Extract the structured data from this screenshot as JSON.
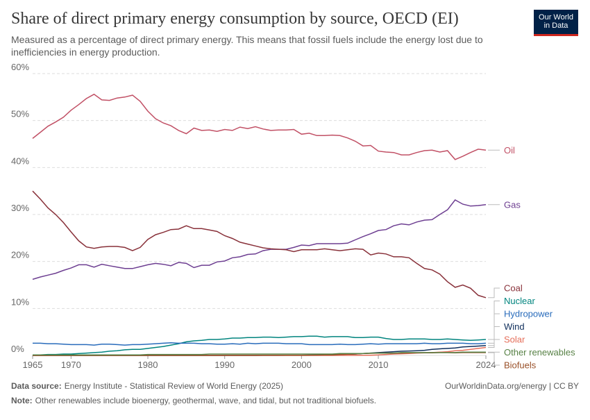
{
  "chart_data": {
    "type": "line",
    "title": "Share of direct primary energy consumption by source, OECD (EI)",
    "subtitle": "Measured as a percentage of direct primary energy. This means that fossil fuels include the energy lost due to inefficiencies in energy production.",
    "logo": "Our World in Data",
    "source_label": "Data source:",
    "source": "Energy Institute - Statistical Review of World Energy (2025)",
    "url": "OurWorldinData.org/energy | CC BY",
    "note_label": "Note:",
    "note": "Other renewables include bioenergy, geothermal, wave, and tidal, but not traditional biofuels.",
    "x": [
      1965,
      1966,
      1967,
      1968,
      1969,
      1970,
      1971,
      1972,
      1973,
      1974,
      1975,
      1976,
      1977,
      1978,
      1979,
      1980,
      1981,
      1982,
      1983,
      1984,
      1985,
      1986,
      1987,
      1988,
      1989,
      1990,
      1991,
      1992,
      1993,
      1994,
      1995,
      1996,
      1997,
      1998,
      1999,
      2000,
      2001,
      2002,
      2003,
      2004,
      2005,
      2006,
      2007,
      2008,
      2009,
      2010,
      2011,
      2012,
      2013,
      2014,
      2015,
      2016,
      2017,
      2018,
      2019,
      2020,
      2021,
      2022,
      2023,
      2024
    ],
    "xlim": [
      1965,
      2024
    ],
    "xticks": [
      1965,
      1970,
      1980,
      1990,
      2000,
      2010,
      2024
    ],
    "ylim": [
      0,
      60
    ],
    "yticks": [
      {
        "value": 0,
        "label": "0%"
      },
      {
        "value": 10,
        "label": "10%"
      },
      {
        "value": 20,
        "label": "20%"
      },
      {
        "value": 30,
        "label": "30%"
      },
      {
        "value": 40,
        "label": "40%"
      },
      {
        "value": 50,
        "label": "50%"
      },
      {
        "value": 60,
        "label": "60%"
      }
    ],
    "grid": true,
    "series": [
      {
        "name": "Oil",
        "color": "#c15065",
        "values": [
          46.2,
          47.5,
          48.8,
          49.7,
          50.7,
          52.2,
          53.4,
          54.7,
          55.6,
          54.4,
          54.3,
          54.8,
          55.0,
          55.4,
          54.1,
          52.0,
          50.4,
          49.5,
          48.9,
          47.9,
          47.2,
          48.4,
          47.9,
          48.0,
          47.7,
          48.1,
          47.9,
          48.6,
          48.3,
          48.7,
          48.2,
          47.9,
          48.0,
          48.0,
          48.1,
          47.1,
          47.3,
          46.8,
          46.8,
          46.9,
          46.8,
          46.3,
          45.6,
          44.6,
          44.7,
          43.5,
          43.3,
          43.2,
          42.7,
          42.7,
          43.2,
          43.6,
          43.7,
          43.3,
          43.6,
          41.7,
          42.4,
          43.2,
          43.9,
          43.7
        ]
      },
      {
        "name": "Gas",
        "color": "#6d3e91",
        "values": [
          16.2,
          16.7,
          17.1,
          17.5,
          18.1,
          18.6,
          19.3,
          19.3,
          18.8,
          19.4,
          19.1,
          18.8,
          18.5,
          18.5,
          18.9,
          19.3,
          19.6,
          19.4,
          19.1,
          19.8,
          19.6,
          18.7,
          19.2,
          19.2,
          19.9,
          20.1,
          20.8,
          21.0,
          21.5,
          21.6,
          22.3,
          22.6,
          22.6,
          22.6,
          23.0,
          23.5,
          23.4,
          23.8,
          23.8,
          23.8,
          23.8,
          23.9,
          24.6,
          25.3,
          25.9,
          26.6,
          26.8,
          27.6,
          28.0,
          27.8,
          28.4,
          28.8,
          28.9,
          30.0,
          31.0,
          33.1,
          32.2,
          31.8,
          31.9,
          32.1
        ]
      },
      {
        "name": "Coal",
        "color": "#883039",
        "values": [
          35.0,
          33.3,
          31.4,
          30.0,
          28.3,
          26.3,
          24.4,
          23.1,
          22.8,
          23.1,
          23.2,
          23.2,
          23.0,
          22.3,
          23.0,
          24.7,
          25.7,
          26.2,
          26.8,
          26.9,
          27.6,
          27.0,
          27.0,
          26.7,
          26.4,
          25.5,
          24.9,
          24.1,
          23.7,
          23.3,
          22.9,
          22.7,
          22.6,
          22.5,
          22.1,
          22.5,
          22.5,
          22.5,
          22.7,
          22.5,
          22.3,
          22.5,
          22.7,
          22.6,
          21.4,
          21.8,
          21.6,
          21.0,
          21.0,
          20.8,
          19.6,
          18.5,
          18.2,
          17.3,
          15.7,
          14.5,
          15.0,
          14.3,
          12.8,
          12.3
        ]
      },
      {
        "name": "Nuclear",
        "color": "#00847e",
        "values": [
          0.1,
          0.1,
          0.2,
          0.2,
          0.3,
          0.3,
          0.4,
          0.5,
          0.6,
          0.7,
          0.9,
          1.0,
          1.2,
          1.3,
          1.3,
          1.5,
          1.7,
          1.9,
          2.2,
          2.5,
          2.9,
          3.1,
          3.2,
          3.4,
          3.4,
          3.5,
          3.7,
          3.7,
          3.8,
          3.8,
          3.9,
          3.9,
          3.8,
          3.9,
          4.0,
          4.0,
          4.1,
          4.1,
          3.9,
          4.0,
          4.0,
          4.0,
          3.8,
          3.8,
          3.9,
          3.9,
          3.6,
          3.4,
          3.4,
          3.5,
          3.5,
          3.5,
          3.4,
          3.4,
          3.5,
          3.4,
          3.3,
          3.2,
          3.3,
          3.4
        ]
      },
      {
        "name": "Hydropower",
        "color": "#286bbb",
        "values": [
          2.6,
          2.6,
          2.5,
          2.5,
          2.4,
          2.3,
          2.3,
          2.3,
          2.2,
          2.4,
          2.4,
          2.3,
          2.2,
          2.3,
          2.3,
          2.4,
          2.5,
          2.6,
          2.7,
          2.6,
          2.6,
          2.6,
          2.5,
          2.5,
          2.4,
          2.4,
          2.5,
          2.4,
          2.6,
          2.5,
          2.6,
          2.6,
          2.6,
          2.5,
          2.5,
          2.5,
          2.3,
          2.3,
          2.3,
          2.3,
          2.4,
          2.3,
          2.3,
          2.4,
          2.5,
          2.4,
          2.5,
          2.5,
          2.5,
          2.5,
          2.5,
          2.6,
          2.5,
          2.5,
          2.6,
          2.6,
          2.6,
          2.5,
          2.5,
          2.6
        ]
      },
      {
        "name": "Wind",
        "color": "#0f2e5b",
        "values": [
          0,
          0,
          0,
          0,
          0,
          0,
          0,
          0,
          0,
          0,
          0,
          0,
          0,
          0,
          0,
          0,
          0,
          0,
          0,
          0,
          0,
          0,
          0,
          0,
          0,
          0,
          0,
          0,
          0,
          0,
          0.01,
          0.01,
          0.02,
          0.03,
          0.04,
          0.05,
          0.07,
          0.09,
          0.12,
          0.15,
          0.2,
          0.25,
          0.3,
          0.4,
          0.5,
          0.6,
          0.7,
          0.8,
          0.9,
          0.95,
          1.0,
          1.1,
          1.3,
          1.4,
          1.5,
          1.6,
          1.8,
          1.9,
          2.0,
          2.1
        ]
      },
      {
        "name": "Solar",
        "color": "#e56e5a",
        "values": [
          0,
          0,
          0,
          0,
          0,
          0,
          0,
          0,
          0,
          0,
          0,
          0,
          0,
          0,
          0,
          0,
          0,
          0,
          0,
          0,
          0,
          0,
          0,
          0,
          0,
          0,
          0,
          0,
          0,
          0,
          0,
          0,
          0,
          0,
          0,
          0,
          0,
          0,
          0,
          0,
          0.01,
          0.01,
          0.02,
          0.03,
          0.05,
          0.1,
          0.2,
          0.3,
          0.35,
          0.4,
          0.5,
          0.55,
          0.6,
          0.7,
          0.8,
          1.0,
          1.1,
          1.3,
          1.5,
          1.7
        ]
      },
      {
        "name": "Biofuels",
        "color": "#9a5129",
        "values": [
          0,
          0,
          0,
          0,
          0,
          0,
          0,
          0,
          0,
          0,
          0,
          0,
          0,
          0,
          0,
          0,
          0,
          0,
          0,
          0,
          0,
          0,
          0,
          0,
          0,
          0.01,
          0.01,
          0.01,
          0.02,
          0.02,
          0.03,
          0.03,
          0.03,
          0.04,
          0.04,
          0.05,
          0.06,
          0.08,
          0.1,
          0.12,
          0.2,
          0.25,
          0.3,
          0.4,
          0.45,
          0.5,
          0.5,
          0.5,
          0.5,
          0.55,
          0.55,
          0.55,
          0.55,
          0.6,
          0.6,
          0.55,
          0.6,
          0.6,
          0.6,
          0.6
        ]
      },
      {
        "name": "Other renewables",
        "color": "#578145",
        "values": [
          0.1,
          0.1,
          0.1,
          0.1,
          0.1,
          0.1,
          0.1,
          0.1,
          0.1,
          0.1,
          0.1,
          0.1,
          0.1,
          0.1,
          0.1,
          0.2,
          0.2,
          0.2,
          0.2,
          0.2,
          0.2,
          0.2,
          0.2,
          0.3,
          0.3,
          0.3,
          0.3,
          0.3,
          0.3,
          0.3,
          0.3,
          0.3,
          0.3,
          0.3,
          0.3,
          0.3,
          0.3,
          0.3,
          0.3,
          0.3,
          0.4,
          0.4,
          0.4,
          0.4,
          0.5,
          0.5,
          0.5,
          0.5,
          0.6,
          0.6,
          0.6,
          0.6,
          0.6,
          0.6,
          0.6,
          0.6,
          0.7,
          0.7,
          0.7,
          0.7
        ]
      }
    ]
  }
}
